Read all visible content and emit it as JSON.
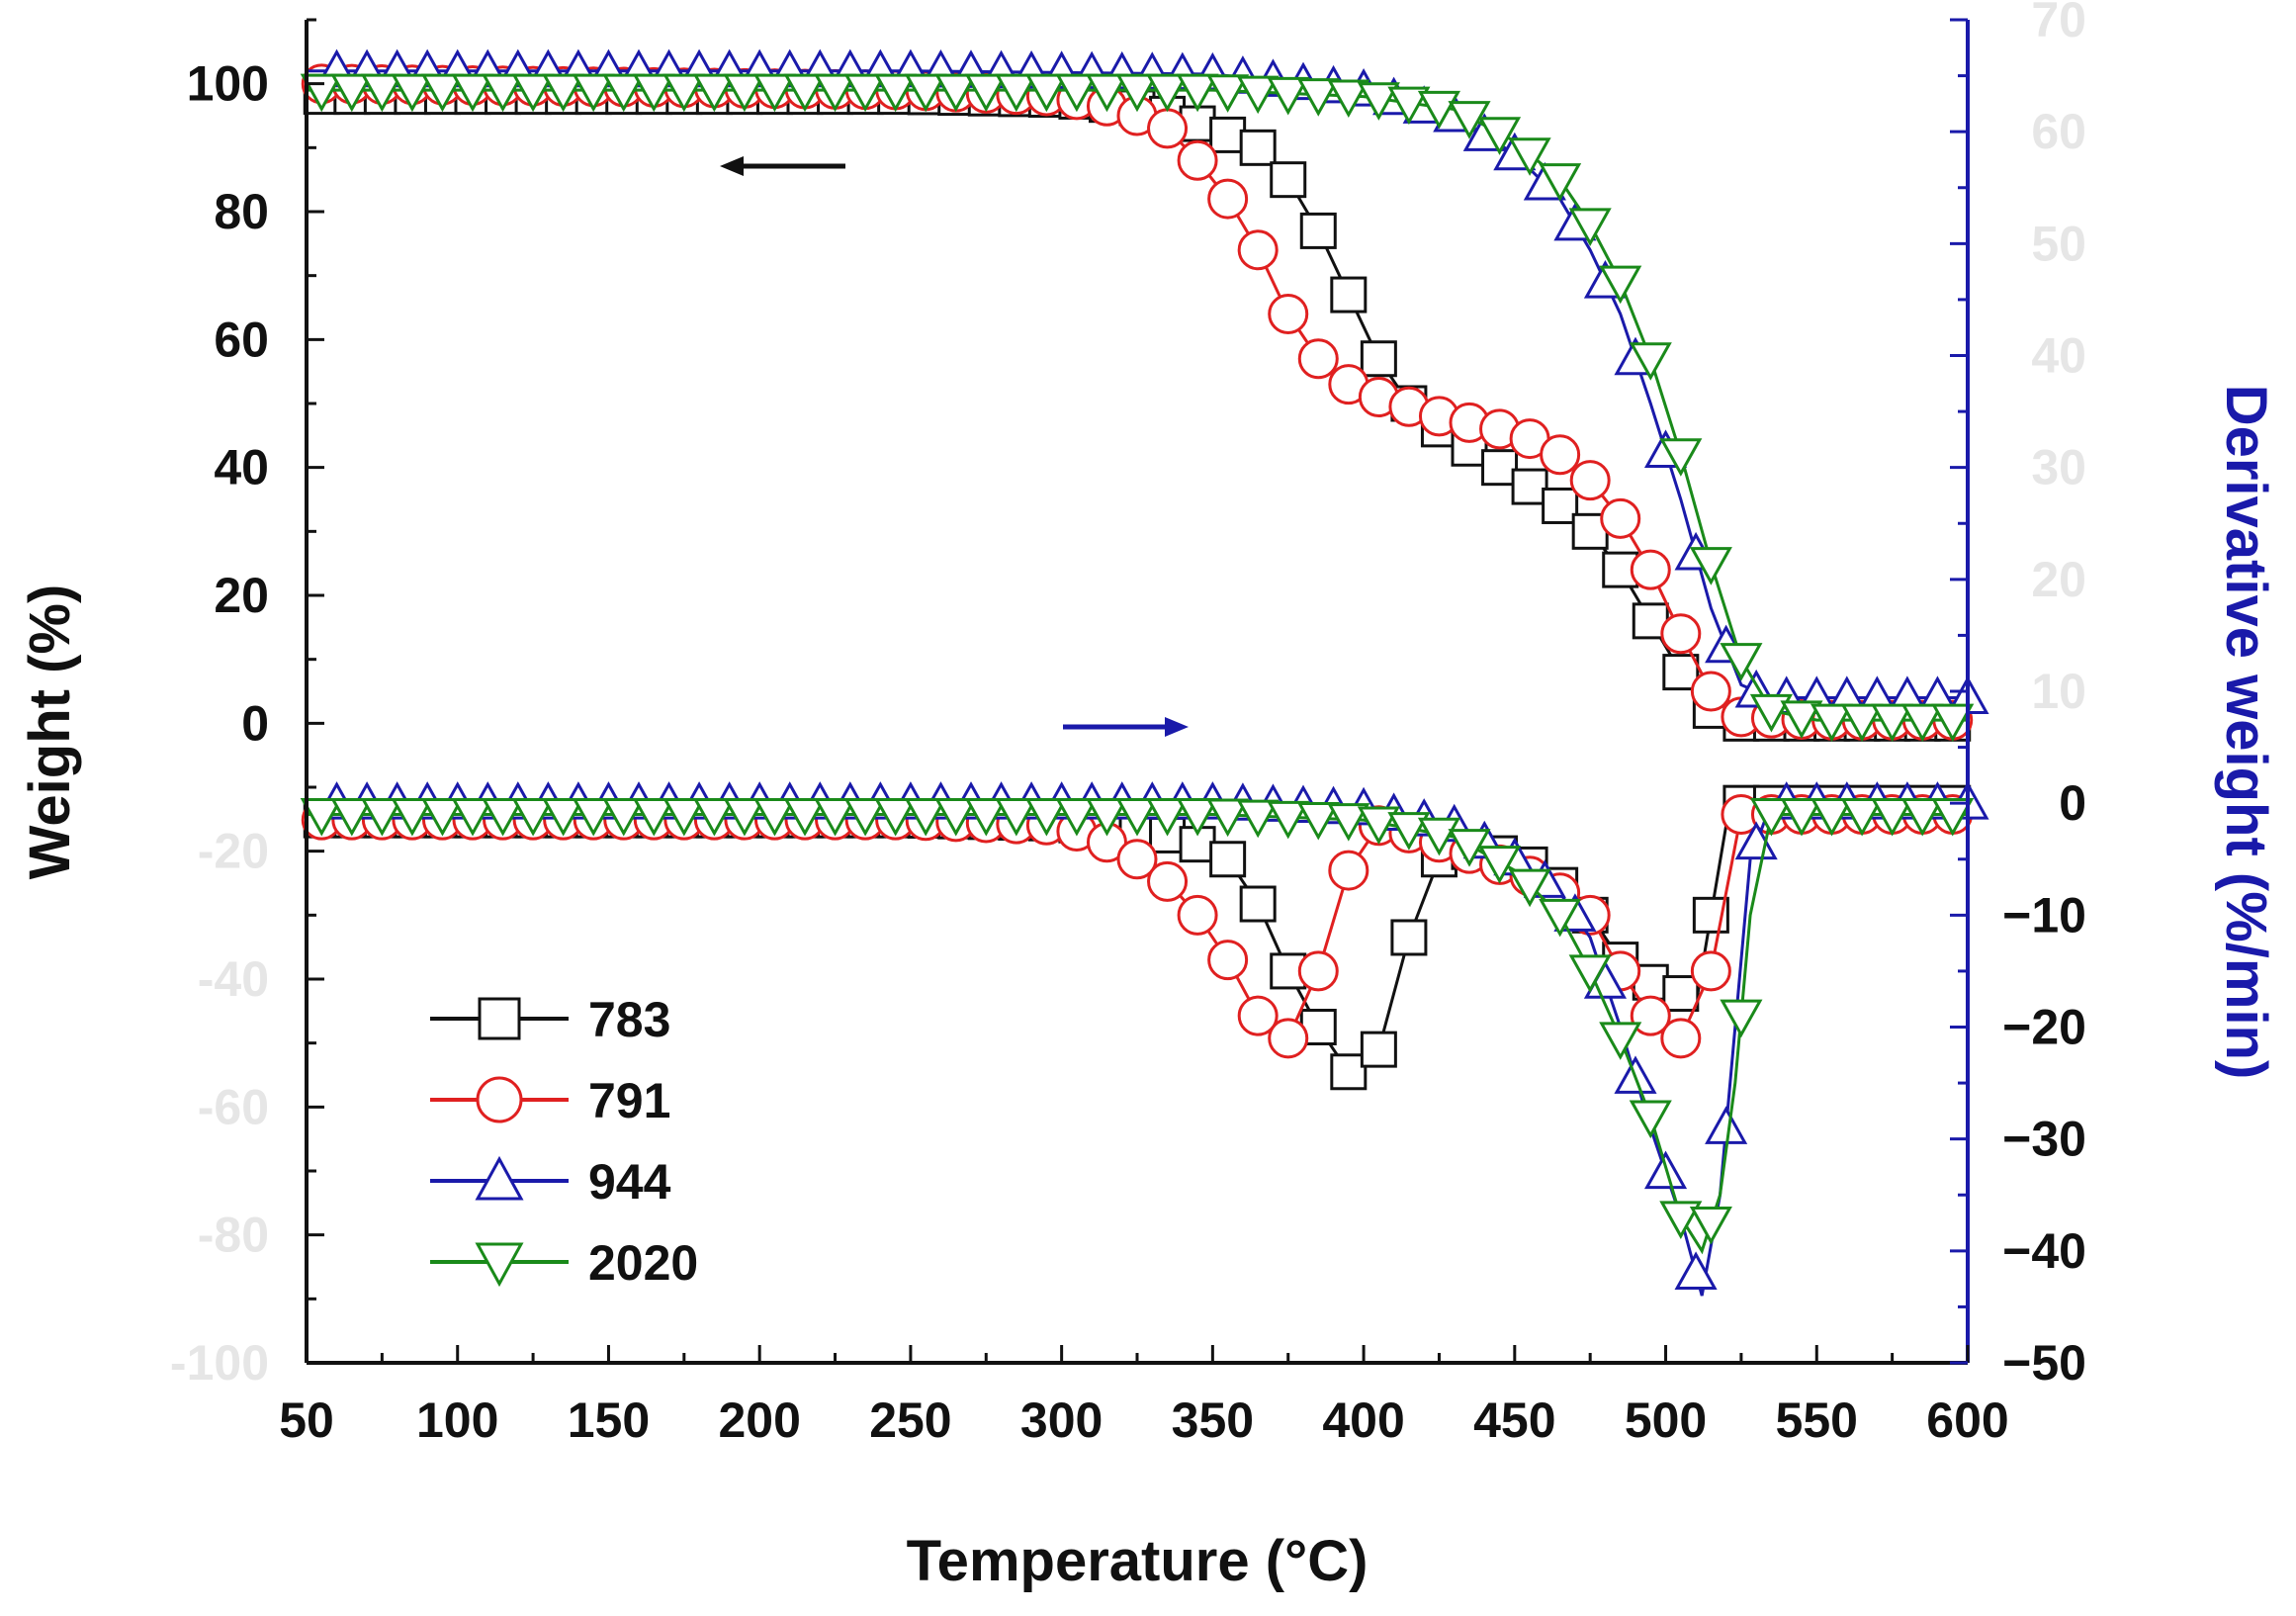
{
  "chart_data": {
    "type": "line",
    "title": "",
    "xlabel": "Temperature (°C)",
    "ylabel_left": "Weight (%)",
    "ylabel_right": "Derivative weight (%/min)",
    "xlim": [
      50,
      600
    ],
    "ylim_left": [
      -100,
      110
    ],
    "ylim_right": [
      -50,
      70
    ],
    "x_ticks": [
      50,
      100,
      150,
      200,
      250,
      300,
      350,
      400,
      450,
      500,
      550,
      600
    ],
    "y_left_ticks_visible": [
      100,
      80,
      60,
      40,
      20,
      0
    ],
    "y_left_ticks_faded": [
      -20,
      -40,
      -60,
      -80,
      -100
    ],
    "y_right_ticks_faded": [
      70,
      60,
      50,
      40,
      30,
      20,
      10
    ],
    "y_right_ticks_visible": [
      0,
      -10,
      -20,
      -30,
      -40,
      -50
    ],
    "right_axis_color": "#1a1aaa",
    "grid": false,
    "legend": {
      "placement": "lower-left",
      "entries": [
        "783",
        "791",
        "944",
        "2020"
      ]
    },
    "annotations": {
      "left_arrow": "weight curves refer to left axis",
      "right_arrow": "derivative curves refer to right axis"
    },
    "series": [
      {
        "name": "783",
        "color": "#111111",
        "marker": "square",
        "axis": "left",
        "kind": "weight",
        "x": [
          50,
          150,
          250,
          300,
          330,
          350,
          365,
          375,
          385,
          395,
          405,
          415,
          425,
          435,
          445,
          455,
          465,
          475,
          485,
          495,
          505,
          515,
          525,
          535,
          550,
          600
        ],
        "y": [
          98,
          98,
          98,
          97.5,
          96,
          93,
          90,
          85,
          77,
          67,
          57,
          50,
          46,
          43,
          40,
          37,
          34,
          30,
          24,
          16,
          8,
          2,
          0,
          0,
          0,
          0
        ]
      },
      {
        "name": "791",
        "color": "#e02020",
        "marker": "circle",
        "axis": "left",
        "kind": "weight",
        "x": [
          50,
          150,
          250,
          300,
          320,
          335,
          345,
          355,
          365,
          375,
          385,
          395,
          405,
          415,
          425,
          435,
          445,
          455,
          465,
          475,
          485,
          495,
          505,
          515,
          525,
          550,
          600
        ],
        "y": [
          100,
          99.5,
          99,
          98,
          96,
          93,
          88,
          82,
          74,
          64,
          57,
          53,
          51,
          49.5,
          48,
          47,
          46,
          44.5,
          42,
          38,
          32,
          24,
          14,
          5,
          1,
          0.5,
          0.5
        ]
      },
      {
        "name": "944",
        "color": "#1a1aaa",
        "marker": "triangle-up",
        "axis": "left",
        "kind": "weight",
        "x": [
          50,
          150,
          250,
          350,
          400,
          430,
          450,
          465,
          475,
          485,
          495,
          505,
          515,
          525,
          535,
          550,
          600
        ],
        "y": [
          102,
          102,
          102,
          101.5,
          99,
          95,
          89,
          82,
          74,
          64,
          50,
          35,
          18,
          6,
          4,
          4,
          4
        ]
      },
      {
        "name": "2020",
        "color": "#1a8a1a",
        "marker": "triangle-down",
        "axis": "left",
        "kind": "weight",
        "x": [
          50,
          150,
          250,
          350,
          400,
          430,
          450,
          465,
          475,
          485,
          495,
          505,
          515,
          525,
          535,
          550,
          600
        ],
        "y": [
          99,
          99,
          99,
          99,
          98,
          96,
          91,
          85,
          78,
          69,
          57,
          42,
          25,
          10,
          2,
          0.5,
          0.5
        ]
      },
      {
        "name": "783",
        "color": "#111111",
        "marker": "square",
        "axis": "right",
        "kind": "derivative",
        "x": [
          50,
          150,
          250,
          300,
          340,
          355,
          365,
          375,
          385,
          395,
          405,
          415,
          425,
          440,
          460,
          475,
          485,
          495,
          505,
          510,
          515,
          520,
          525,
          550,
          600
        ],
        "y": [
          -1.5,
          -1.5,
          -1.5,
          -1.8,
          -3,
          -5,
          -9,
          -15,
          -20,
          -24,
          -22,
          -12,
          -5,
          -4,
          -6,
          -10,
          -14,
          -16,
          -17,
          -18,
          -10,
          -2,
          0,
          0,
          0
        ]
      },
      {
        "name": "791",
        "color": "#e02020",
        "marker": "circle",
        "axis": "right",
        "kind": "derivative",
        "x": [
          50,
          150,
          250,
          300,
          320,
          335,
          345,
          355,
          365,
          375,
          385,
          395,
          405,
          420,
          440,
          460,
          475,
          485,
          495,
          505,
          515,
          525,
          550,
          600
        ],
        "y": [
          -1.5,
          -1.5,
          -1.5,
          -2,
          -4,
          -7,
          -10,
          -14,
          -19,
          -21,
          -15,
          -6,
          -2,
          -3,
          -5,
          -7,
          -10,
          -15,
          -19,
          -21,
          -15,
          -1,
          -1,
          -1
        ]
      },
      {
        "name": "944",
        "color": "#1a1aaa",
        "marker": "triangle-up",
        "axis": "right",
        "kind": "derivative",
        "x": [
          50,
          150,
          250,
          350,
          400,
          430,
          450,
          465,
          475,
          485,
          495,
          505,
          512,
          518,
          523,
          528,
          535,
          550,
          600
        ],
        "y": [
          0,
          0,
          0,
          0,
          -0.5,
          -2,
          -5,
          -8,
          -12,
          -20,
          -29,
          -37,
          -44,
          -35,
          -20,
          -5,
          0,
          0,
          0
        ]
      },
      {
        "name": "2020",
        "color": "#1a8a1a",
        "marker": "triangle-down",
        "axis": "right",
        "kind": "derivative",
        "x": [
          50,
          150,
          250,
          350,
          400,
          430,
          450,
          465,
          475,
          485,
          495,
          505,
          512,
          518,
          523,
          528,
          535,
          550,
          600
        ],
        "y": [
          -1,
          -1,
          -1,
          -1,
          -1.5,
          -3,
          -6,
          -10,
          -15,
          -21,
          -28,
          -37,
          -40,
          -35,
          -25,
          -10,
          -1,
          -1,
          -1
        ]
      }
    ]
  }
}
